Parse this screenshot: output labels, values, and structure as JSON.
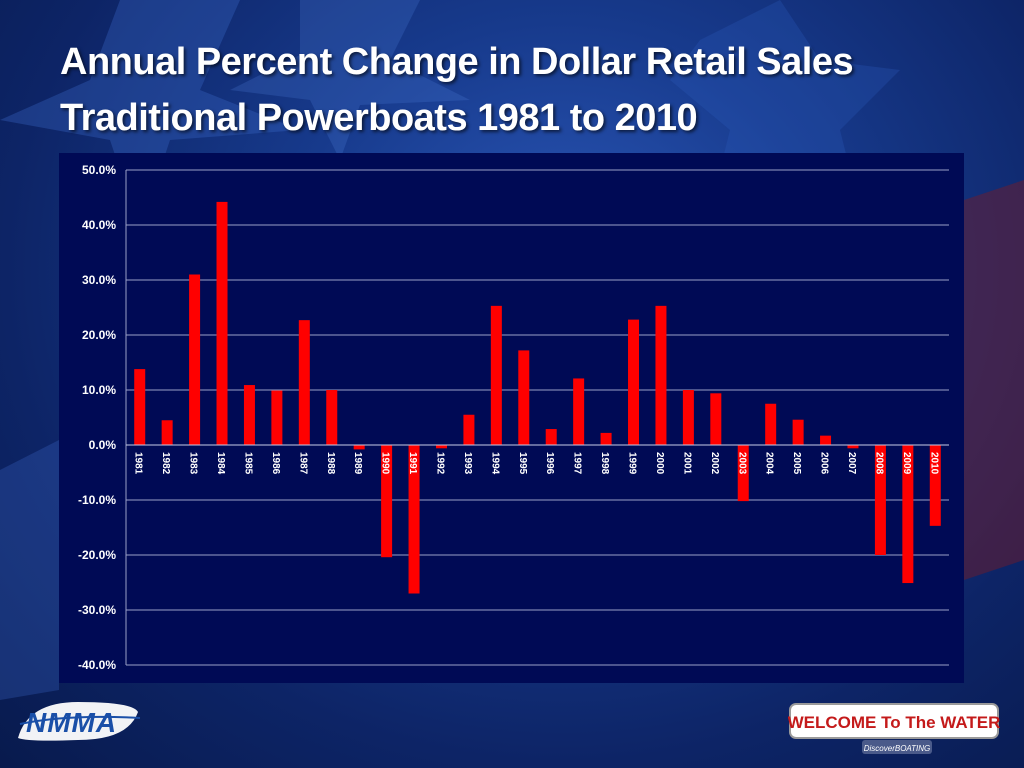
{
  "slide": {
    "title_line1": "Annual Percent Change in Dollar Retail Sales",
    "title_line2": "Traditional Powerboats 1981 to 2010"
  },
  "logos": {
    "left": "NMMA",
    "right_main": "WELCOME To The WATER",
    "right_sub": "DiscoverBOATING"
  },
  "colors": {
    "bar": "#ff0000",
    "plot_background": "#000a55",
    "grid": "#9aa0c8",
    "text": "#ffffff"
  },
  "chart_data": {
    "type": "bar",
    "title": "",
    "xlabel": "",
    "ylabel": "",
    "ylim": [
      -40,
      50
    ],
    "y_ticks": [
      "50.0%",
      "40.0%",
      "30.0%",
      "20.0%",
      "10.0%",
      "0.0%",
      "-10.0%",
      "-20.0%",
      "-30.0%",
      "-40.0%"
    ],
    "y_tick_values": [
      50,
      40,
      30,
      20,
      10,
      0,
      -10,
      -20,
      -30,
      -40
    ],
    "grid": true,
    "categories": [
      "1981",
      "1982",
      "1983",
      "1984",
      "1985",
      "1986",
      "1987",
      "1988",
      "1989",
      "1990",
      "1991",
      "1992",
      "1993",
      "1994",
      "1995",
      "1996",
      "1997",
      "1998",
      "1999",
      "2000",
      "2001",
      "2002",
      "2003",
      "2004",
      "2005",
      "2006",
      "2007",
      "2008",
      "2009",
      "2010"
    ],
    "values": [
      13.8,
      4.5,
      31.0,
      44.2,
      10.9,
      9.9,
      22.7,
      10.0,
      -0.8,
      -20.4,
      -27.0,
      -0.6,
      5.5,
      25.3,
      17.2,
      2.9,
      12.1,
      2.2,
      22.8,
      25.3,
      10.0,
      9.4,
      -10.2,
      7.5,
      4.6,
      1.7,
      -0.6,
      -20.0,
      -25.1,
      -14.7
    ]
  }
}
